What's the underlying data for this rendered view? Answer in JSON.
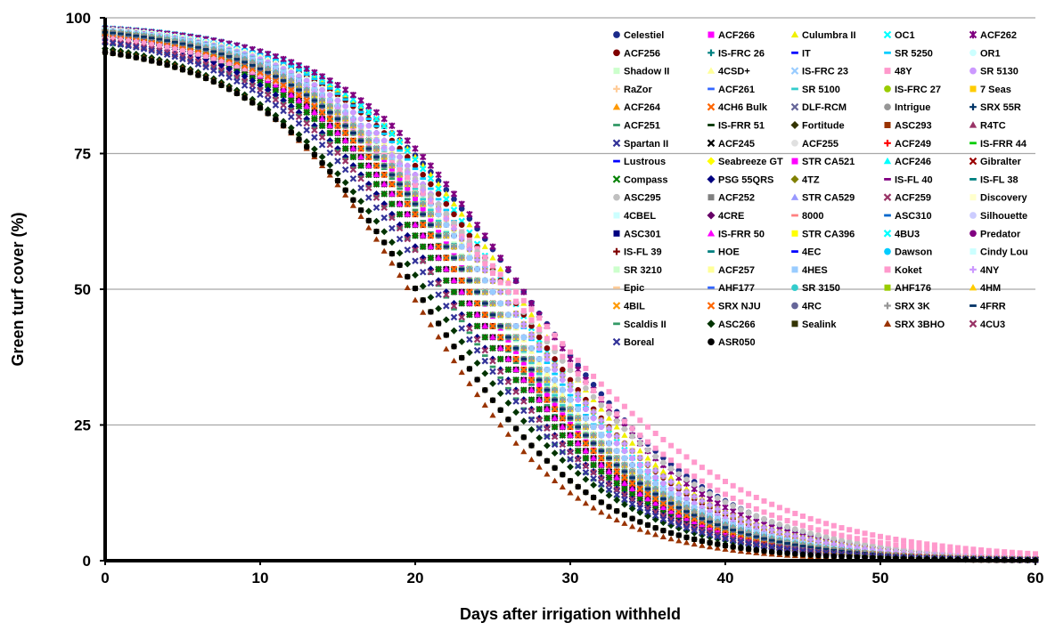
{
  "chart_data": {
    "type": "line",
    "xlabel": "Days after irrigation withheld",
    "ylabel": "Green turf cover (%)",
    "xlim": [
      0,
      60
    ],
    "ylim": [
      0,
      100
    ],
    "x_ticks": [
      "0",
      "10",
      "20",
      "30",
      "40",
      "50",
      "60"
    ],
    "y_ticks": [
      "0",
      "25",
      "50",
      "75",
      "100"
    ],
    "grid": "horizontal",
    "legend_position": "top-right",
    "x_step": 0.5,
    "series": [
      {
        "name": "Celestiel",
        "color": "#1a2a8a",
        "marker": "circle",
        "x50": 27.0,
        "k": 0.16,
        "top": 99
      },
      {
        "name": "ACF266",
        "color": "#ff00ff",
        "marker": "square",
        "x50": 24.0,
        "k": 0.18,
        "top": 99
      },
      {
        "name": "Culumbra II",
        "color": "#f0f000",
        "marker": "triangle",
        "x50": 26.5,
        "k": 0.17,
        "top": 99
      },
      {
        "name": "OC1",
        "color": "#00ffff",
        "marker": "x",
        "x50": 26.0,
        "k": 0.18,
        "top": 99
      },
      {
        "name": "ACF262",
        "color": "#800080",
        "marker": "asterisk",
        "x50": 27.0,
        "k": 0.17,
        "top": 99
      },
      {
        "name": "ACF256",
        "color": "#800000",
        "marker": "circle",
        "x50": 26.0,
        "k": 0.17,
        "top": 99
      },
      {
        "name": "IS-FRC 26",
        "color": "#008080",
        "marker": "plus",
        "x50": 25.5,
        "k": 0.17,
        "top": 99
      },
      {
        "name": "IT",
        "color": "#0000ff",
        "marker": "dash",
        "x50": 25.0,
        "k": 0.17,
        "top": 99
      },
      {
        "name": "SR 5250",
        "color": "#00ccff",
        "marker": "dash",
        "x50": 25.5,
        "k": 0.18,
        "top": 99
      },
      {
        "name": "OR1",
        "color": "#ccffff",
        "marker": "circle",
        "x50": 25.0,
        "k": 0.18,
        "top": 99
      },
      {
        "name": "Shadow II",
        "color": "#ccffcc",
        "marker": "square",
        "x50": 24.5,
        "k": 0.18,
        "top": 99
      },
      {
        "name": "4CSD+",
        "color": "#ffff99",
        "marker": "triangle",
        "x50": 25.0,
        "k": 0.18,
        "top": 99
      },
      {
        "name": "IS-FRC 23",
        "color": "#99ccff",
        "marker": "x",
        "x50": 24.5,
        "k": 0.17,
        "top": 99
      },
      {
        "name": "48Y",
        "color": "#ff99cc",
        "marker": "square",
        "x50": 26.5,
        "k": 0.13,
        "top": 99
      },
      {
        "name": "SR 5130",
        "color": "#cc99ff",
        "marker": "circle",
        "x50": 25.5,
        "k": 0.17,
        "top": 99
      },
      {
        "name": "RaZor",
        "color": "#ffcc99",
        "marker": "plus",
        "x50": 25.0,
        "k": 0.17,
        "top": 99
      },
      {
        "name": "ACF261",
        "color": "#3366ff",
        "marker": "dash",
        "x50": 24.5,
        "k": 0.17,
        "top": 99
      },
      {
        "name": "SR 5100",
        "color": "#33cccc",
        "marker": "dash",
        "x50": 24.5,
        "k": 0.18,
        "top": 99
      },
      {
        "name": "IS-FRC 27",
        "color": "#99cc00",
        "marker": "circle",
        "x50": 24.5,
        "k": 0.17,
        "top": 99
      },
      {
        "name": "7 Seas",
        "color": "#ffcc00",
        "marker": "square",
        "x50": 25.5,
        "k": 0.16,
        "top": 99
      },
      {
        "name": "ACF264",
        "color": "#ff9900",
        "marker": "triangle",
        "x50": 24.0,
        "k": 0.17,
        "top": 99
      },
      {
        "name": "4CH6 Bulk",
        "color": "#ff6600",
        "marker": "x",
        "x50": 24.0,
        "k": 0.17,
        "top": 99
      },
      {
        "name": "DLF-RCM",
        "color": "#666699",
        "marker": "x",
        "x50": 24.5,
        "k": 0.17,
        "top": 99
      },
      {
        "name": "Intrigue",
        "color": "#969696",
        "marker": "circle",
        "x50": 25.5,
        "k": 0.16,
        "top": 99
      },
      {
        "name": "SRX 55R",
        "color": "#003366",
        "marker": "plus",
        "x50": 25.0,
        "k": 0.17,
        "top": 99
      },
      {
        "name": "ACF251",
        "color": "#339966",
        "marker": "dash",
        "x50": 23.5,
        "k": 0.18,
        "top": 99
      },
      {
        "name": "IS-FRR 51",
        "color": "#003300",
        "marker": "dash",
        "x50": 23.0,
        "k": 0.17,
        "top": 99
      },
      {
        "name": "Fortitude",
        "color": "#333300",
        "marker": "diamond",
        "x50": 22.5,
        "k": 0.17,
        "top": 99
      },
      {
        "name": "ASC293",
        "color": "#993300",
        "marker": "square",
        "x50": 23.0,
        "k": 0.17,
        "top": 99
      },
      {
        "name": "R4TC",
        "color": "#993366",
        "marker": "triangle",
        "x50": 24.0,
        "k": 0.17,
        "top": 99
      },
      {
        "name": "Spartan II",
        "color": "#333399",
        "marker": "x",
        "x50": 22.5,
        "k": 0.17,
        "top": 99
      },
      {
        "name": "ACF245",
        "color": "#000000",
        "marker": "x",
        "x50": 23.0,
        "k": 0.17,
        "top": 99
      },
      {
        "name": "ACF255",
        "color": "#e0e0e0",
        "marker": "circle",
        "x50": 24.5,
        "k": 0.17,
        "top": 99
      },
      {
        "name": "ACF249",
        "color": "#ff0000",
        "marker": "plus",
        "x50": 24.0,
        "k": 0.17,
        "top": 99
      },
      {
        "name": "IS-FRR 44",
        "color": "#00cc00",
        "marker": "dash",
        "x50": 23.5,
        "k": 0.17,
        "top": 99
      },
      {
        "name": "Lustrous",
        "color": "#0000ff",
        "marker": "dash",
        "x50": 24.0,
        "k": 0.17,
        "top": 99
      },
      {
        "name": "Seabreeze GT",
        "color": "#ffff00",
        "marker": "diamond",
        "x50": 24.5,
        "k": 0.17,
        "top": 99
      },
      {
        "name": "STR CA521",
        "color": "#ff00ff",
        "marker": "square",
        "x50": 24.0,
        "k": 0.17,
        "top": 99
      },
      {
        "name": "ACF246",
        "color": "#00ffff",
        "marker": "triangle",
        "x50": 24.5,
        "k": 0.17,
        "top": 99
      },
      {
        "name": "Gibralter",
        "color": "#990000",
        "marker": "x",
        "x50": 23.5,
        "k": 0.17,
        "top": 99
      },
      {
        "name": "Compass",
        "color": "#008000",
        "marker": "x",
        "x50": 22.5,
        "k": 0.17,
        "top": 99
      },
      {
        "name": "PSG 55QRS",
        "color": "#000080",
        "marker": "diamond",
        "x50": 22.0,
        "k": 0.17,
        "top": 99
      },
      {
        "name": "4TZ",
        "color": "#808000",
        "marker": "diamond",
        "x50": 23.0,
        "k": 0.17,
        "top": 99
      },
      {
        "name": "IS-FL 40",
        "color": "#800080",
        "marker": "dash",
        "x50": 24.0,
        "k": 0.17,
        "top": 99
      },
      {
        "name": "IS-FL 38",
        "color": "#008080",
        "marker": "dash",
        "x50": 24.0,
        "k": 0.17,
        "top": 99
      },
      {
        "name": "ASC295",
        "color": "#c0c0c0",
        "marker": "circle",
        "x50": 26.0,
        "k": 0.15,
        "top": 99
      },
      {
        "name": "ACF252",
        "color": "#808080",
        "marker": "square",
        "x50": 23.5,
        "k": 0.17,
        "top": 99
      },
      {
        "name": "STR CA529",
        "color": "#9999ff",
        "marker": "triangle",
        "x50": 24.0,
        "k": 0.17,
        "top": 99
      },
      {
        "name": "ACF259",
        "color": "#993366",
        "marker": "x",
        "x50": 24.5,
        "k": 0.17,
        "top": 99
      },
      {
        "name": "Discovery",
        "color": "#ffffcc",
        "marker": "square",
        "x50": 25.0,
        "k": 0.17,
        "top": 99
      },
      {
        "name": "4CBEL",
        "color": "#ccffff",
        "marker": "square",
        "x50": 24.0,
        "k": 0.17,
        "top": 99
      },
      {
        "name": "4CRE",
        "color": "#660066",
        "marker": "diamond",
        "x50": 23.0,
        "k": 0.17,
        "top": 99
      },
      {
        "name": "8000",
        "color": "#ff8080",
        "marker": "dash",
        "x50": 24.0,
        "k": 0.17,
        "top": 99
      },
      {
        "name": "ASC310",
        "color": "#0066cc",
        "marker": "dash",
        "x50": 24.5,
        "k": 0.17,
        "top": 99
      },
      {
        "name": "Silhouette",
        "color": "#ccccff",
        "marker": "circle",
        "x50": 25.0,
        "k": 0.17,
        "top": 99
      },
      {
        "name": "ASC301",
        "color": "#000080",
        "marker": "square",
        "x50": 23.5,
        "k": 0.17,
        "top": 99
      },
      {
        "name": "IS-FRR 50",
        "color": "#ff00ff",
        "marker": "triangle",
        "x50": 23.0,
        "k": 0.17,
        "top": 99
      },
      {
        "name": "STR CA396",
        "color": "#ffff00",
        "marker": "square",
        "x50": 24.5,
        "k": 0.17,
        "top": 99
      },
      {
        "name": "4BU3",
        "color": "#00ffff",
        "marker": "x",
        "x50": 24.0,
        "k": 0.17,
        "top": 99
      },
      {
        "name": "Predator",
        "color": "#800080",
        "marker": "circle",
        "x50": 25.0,
        "k": 0.17,
        "top": 99
      },
      {
        "name": "IS-FL 39",
        "color": "#800000",
        "marker": "plus",
        "x50": 23.5,
        "k": 0.17,
        "top": 99
      },
      {
        "name": "HOE",
        "color": "#008080",
        "marker": "dash",
        "x50": 23.5,
        "k": 0.17,
        "top": 99
      },
      {
        "name": "4EC",
        "color": "#0000ff",
        "marker": "dash",
        "x50": 24.0,
        "k": 0.17,
        "top": 99
      },
      {
        "name": "Dawson",
        "color": "#00ccff",
        "marker": "circle",
        "x50": 24.5,
        "k": 0.17,
        "top": 99
      },
      {
        "name": "Cindy Lou",
        "color": "#ccffff",
        "marker": "square",
        "x50": 25.0,
        "k": 0.17,
        "top": 99
      },
      {
        "name": "SR 3210",
        "color": "#ccffcc",
        "marker": "square",
        "x50": 24.0,
        "k": 0.17,
        "top": 99
      },
      {
        "name": "ACF257",
        "color": "#ffff99",
        "marker": "square",
        "x50": 24.5,
        "k": 0.17,
        "top": 99
      },
      {
        "name": "4HES",
        "color": "#99ccff",
        "marker": "square",
        "x50": 25.0,
        "k": 0.17,
        "top": 99
      },
      {
        "name": "Koket",
        "color": "#ff99cc",
        "marker": "square",
        "x50": 26.0,
        "k": 0.14,
        "top": 99
      },
      {
        "name": "4NY",
        "color": "#cc99ff",
        "marker": "plus",
        "x50": 25.5,
        "k": 0.16,
        "top": 99
      },
      {
        "name": "Epic",
        "color": "#ffcc99",
        "marker": "dash",
        "x50": 24.0,
        "k": 0.17,
        "top": 99
      },
      {
        "name": "AHF177",
        "color": "#3366ff",
        "marker": "dash",
        "x50": 24.5,
        "k": 0.17,
        "top": 99
      },
      {
        "name": "SR 3150",
        "color": "#33cccc",
        "marker": "circle",
        "x50": 24.5,
        "k": 0.17,
        "top": 99
      },
      {
        "name": "AHF176",
        "color": "#99cc00",
        "marker": "square",
        "x50": 24.0,
        "k": 0.17,
        "top": 99
      },
      {
        "name": "4HM",
        "color": "#ffcc00",
        "marker": "triangle",
        "x50": 24.5,
        "k": 0.17,
        "top": 99
      },
      {
        "name": "4BIL",
        "color": "#ff9900",
        "marker": "x",
        "x50": 23.5,
        "k": 0.17,
        "top": 99
      },
      {
        "name": "SRX NJU",
        "color": "#ff6600",
        "marker": "x",
        "x50": 23.5,
        "k": 0.17,
        "top": 99
      },
      {
        "name": "4RC",
        "color": "#666699",
        "marker": "circle",
        "x50": 24.0,
        "k": 0.17,
        "top": 99
      },
      {
        "name": "SRX 3K",
        "color": "#969696",
        "marker": "plus",
        "x50": 24.5,
        "k": 0.17,
        "top": 99
      },
      {
        "name": "4FRR",
        "color": "#003366",
        "marker": "dash",
        "x50": 24.0,
        "k": 0.17,
        "top": 99
      },
      {
        "name": "Scaldis II",
        "color": "#339966",
        "marker": "dash",
        "x50": 22.0,
        "k": 0.18,
        "top": 97
      },
      {
        "name": "ASC266",
        "color": "#003300",
        "marker": "diamond",
        "x50": 21.0,
        "k": 0.17,
        "top": 97
      },
      {
        "name": "Sealink",
        "color": "#333300",
        "marker": "square",
        "x50": 20.5,
        "k": 0.18,
        "top": 96
      },
      {
        "name": "SRX 3BHO",
        "color": "#993300",
        "marker": "triangle",
        "x50": 20.0,
        "k": 0.19,
        "top": 96
      },
      {
        "name": "4CU3",
        "color": "#993366",
        "marker": "x",
        "x50": 22.0,
        "k": 0.17,
        "top": 98
      },
      {
        "name": "Boreal",
        "color": "#333399",
        "marker": "x",
        "x50": 21.5,
        "k": 0.17,
        "top": 98
      },
      {
        "name": "ASR050",
        "color": "#000000",
        "marker": "circle",
        "x50": 20.5,
        "k": 0.18,
        "top": 96
      }
    ]
  }
}
